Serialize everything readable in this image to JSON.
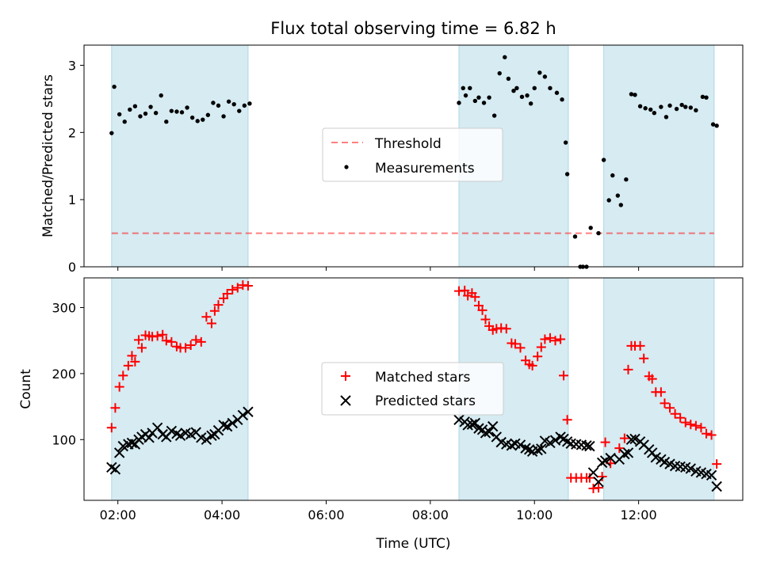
{
  "chart_data": [
    {
      "type": "scatter",
      "title": "Flux total observing time = 6.82 h",
      "ylabel": "Matched/Predicted stars",
      "xlabel": "",
      "xlim_hours": [
        1.35,
        14.0
      ],
      "ylim": [
        0,
        3.3
      ],
      "yticks": [
        "0",
        "1",
        "2",
        "3"
      ],
      "xticks": [
        "02:00",
        "04:00",
        "06:00",
        "08:00",
        "10:00",
        "12:00"
      ],
      "legend_position": "center",
      "observing_windows_hours": [
        [
          1.88,
          4.5
        ],
        [
          8.55,
          10.65
        ],
        [
          11.33,
          13.45
        ]
      ],
      "threshold": 0.5,
      "legend": {
        "threshold_label": "Threshold",
        "measurements_label": "Measurements"
      },
      "series": [
        {
          "name": "Measurements",
          "color": "#000000",
          "x_hours": [
            1.88,
            1.93,
            2.03,
            2.13,
            2.23,
            2.33,
            2.43,
            2.53,
            2.63,
            2.73,
            2.83,
            2.93,
            3.03,
            3.13,
            3.23,
            3.33,
            3.43,
            3.53,
            3.63,
            3.73,
            3.83,
            3.93,
            4.03,
            4.13,
            4.23,
            4.33,
            4.43,
            4.53,
            8.55,
            8.63,
            8.68,
            8.76,
            8.86,
            8.93,
            9.03,
            9.13,
            9.23,
            9.33,
            9.43,
            9.5,
            9.6,
            9.66,
            9.76,
            9.86,
            9.93,
            10.0,
            10.1,
            10.2,
            10.3,
            10.43,
            10.53,
            10.6,
            10.63,
            10.78,
            10.88,
            10.93,
            11.0,
            11.08,
            11.23,
            11.33,
            11.43,
            11.5,
            11.6,
            11.66,
            11.76,
            11.86,
            11.93,
            12.03,
            12.13,
            12.23,
            12.3,
            12.43,
            12.53,
            12.6,
            12.73,
            12.83,
            12.9,
            13.0,
            13.1,
            13.23,
            13.3,
            13.43,
            13.5
          ],
          "values": [
            1.99,
            2.68,
            2.27,
            2.16,
            2.34,
            2.39,
            2.24,
            2.28,
            2.38,
            2.29,
            2.55,
            2.16,
            2.32,
            2.31,
            2.3,
            2.37,
            2.22,
            2.17,
            2.19,
            2.26,
            2.44,
            2.4,
            2.24,
            2.46,
            2.42,
            2.32,
            2.4,
            2.43,
            2.44,
            2.66,
            2.55,
            2.66,
            2.47,
            2.52,
            2.44,
            2.52,
            2.25,
            2.88,
            3.12,
            2.8,
            2.62,
            2.66,
            2.53,
            2.55,
            2.43,
            2.66,
            2.89,
            2.83,
            2.66,
            2.59,
            2.49,
            1.85,
            1.38,
            0.45,
            0.0,
            0.0,
            0.0,
            0.58,
            0.5,
            1.59,
            0.99,
            1.36,
            1.06,
            0.92,
            1.3,
            2.57,
            2.56,
            2.39,
            2.36,
            2.34,
            2.29,
            2.38,
            2.23,
            2.4,
            2.35,
            2.41,
            2.38,
            2.37,
            2.33,
            2.53,
            2.52,
            2.12,
            2.1
          ]
        }
      ]
    },
    {
      "type": "scatter",
      "title": "",
      "ylabel": "Count",
      "xlabel": "Time (UTC)",
      "xlim_hours": [
        1.35,
        14.0
      ],
      "ylim": [
        8,
        345
      ],
      "yticks": [
        "100",
        "200",
        "300"
      ],
      "xticks": [
        "02:00",
        "04:00",
        "06:00",
        "08:00",
        "10:00",
        "12:00"
      ],
      "legend_position": "center",
      "observing_windows_hours": [
        [
          1.88,
          4.5
        ],
        [
          8.55,
          10.65
        ],
        [
          11.33,
          13.45
        ]
      ],
      "legend": {
        "matched_label": "Matched stars",
        "predicted_label": "Predicted stars"
      },
      "series": [
        {
          "name": "Matched stars",
          "color": "#ff0000",
          "x_hours": [
            1.88,
            1.95,
            2.03,
            2.1,
            2.2,
            2.27,
            2.33,
            2.4,
            2.46,
            2.53,
            2.6,
            2.66,
            2.76,
            2.86,
            2.93,
            3.03,
            3.13,
            3.2,
            3.3,
            3.4,
            3.5,
            3.6,
            3.7,
            3.8,
            3.86,
            3.93,
            4.03,
            4.1,
            4.2,
            4.3,
            4.4,
            4.5,
            8.55,
            8.66,
            8.72,
            8.8,
            8.86,
            8.93,
            9.0,
            9.06,
            9.13,
            9.2,
            9.27,
            9.36,
            9.46,
            9.56,
            9.63,
            9.73,
            9.83,
            9.9,
            9.96,
            10.06,
            10.13,
            10.2,
            10.3,
            10.4,
            10.5,
            10.56,
            10.63,
            10.7,
            10.8,
            10.9,
            11.0,
            11.06,
            11.13,
            11.23,
            11.3,
            11.36,
            11.46,
            11.63,
            11.73,
            11.8,
            11.86,
            11.93,
            12.03,
            12.1,
            12.2,
            12.26,
            12.33,
            12.43,
            12.5,
            12.6,
            12.7,
            12.8,
            12.9,
            13.0,
            13.1,
            13.2,
            13.3,
            13.4,
            13.5
          ],
          "values": [
            118,
            148,
            180,
            197,
            212,
            227,
            218,
            251,
            239,
            258,
            257,
            256,
            257,
            259,
            250,
            248,
            241,
            239,
            239,
            243,
            251,
            248,
            286,
            276,
            295,
            304,
            314,
            321,
            327,
            330,
            334,
            333,
            325,
            326,
            318,
            322,
            316,
            303,
            296,
            282,
            272,
            266,
            268,
            269,
            268,
            246,
            245,
            239,
            220,
            214,
            212,
            226,
            240,
            252,
            254,
            250,
            252,
            197,
            130,
            42,
            42,
            42,
            42,
            42,
            26,
            27,
            44,
            96,
            64,
            87,
            102,
            206,
            242,
            242,
            242,
            223,
            196,
            192,
            172,
            172,
            155,
            148,
            139,
            133,
            126,
            123,
            121,
            118,
            109,
            107,
            63
          ]
        },
        {
          "name": "Predicted stars",
          "color": "#000000",
          "x_hours": [
            1.88,
            1.95,
            2.03,
            2.1,
            2.2,
            2.27,
            2.33,
            2.4,
            2.46,
            2.53,
            2.6,
            2.66,
            2.76,
            2.86,
            2.93,
            3.03,
            3.13,
            3.2,
            3.3,
            3.4,
            3.5,
            3.6,
            3.7,
            3.8,
            3.86,
            3.93,
            4.03,
            4.1,
            4.2,
            4.3,
            4.4,
            4.5,
            8.55,
            8.66,
            8.72,
            8.8,
            8.86,
            8.93,
            9.0,
            9.06,
            9.13,
            9.2,
            9.27,
            9.36,
            9.46,
            9.56,
            9.63,
            9.73,
            9.83,
            9.9,
            9.96,
            10.06,
            10.13,
            10.2,
            10.3,
            10.4,
            10.5,
            10.56,
            10.63,
            10.7,
            10.8,
            10.9,
            11.0,
            11.06,
            11.13,
            11.23,
            11.3,
            11.36,
            11.46,
            11.63,
            11.73,
            11.8,
            11.86,
            11.93,
            12.03,
            12.1,
            12.2,
            12.26,
            12.33,
            12.43,
            12.5,
            12.6,
            12.7,
            12.8,
            12.9,
            13.0,
            13.1,
            13.2,
            13.3,
            13.4,
            13.5
          ],
          "values": [
            58,
            55,
            80,
            90,
            93,
            95,
            93,
            100,
            104,
            108,
            103,
            110,
            118,
            108,
            104,
            113,
            109,
            106,
            110,
            108,
            111,
            103,
            100,
            106,
            108,
            114,
            122,
            120,
            125,
            130,
            137,
            142,
            130,
            127,
            122,
            123,
            125,
            117,
            115,
            110,
            112,
            120,
            104,
            96,
            93,
            91,
            94,
            92,
            87,
            85,
            82,
            84,
            86,
            98,
            95,
            99,
            104,
            101,
            97,
            94,
            93,
            92,
            91,
            90,
            50,
            36,
            65,
            68,
            72,
            70,
            78,
            80,
            100,
            101,
            97,
            92,
            85,
            80,
            73,
            70,
            66,
            63,
            60,
            59,
            58,
            56,
            52,
            50,
            48,
            46,
            29
          ]
        }
      ]
    }
  ]
}
